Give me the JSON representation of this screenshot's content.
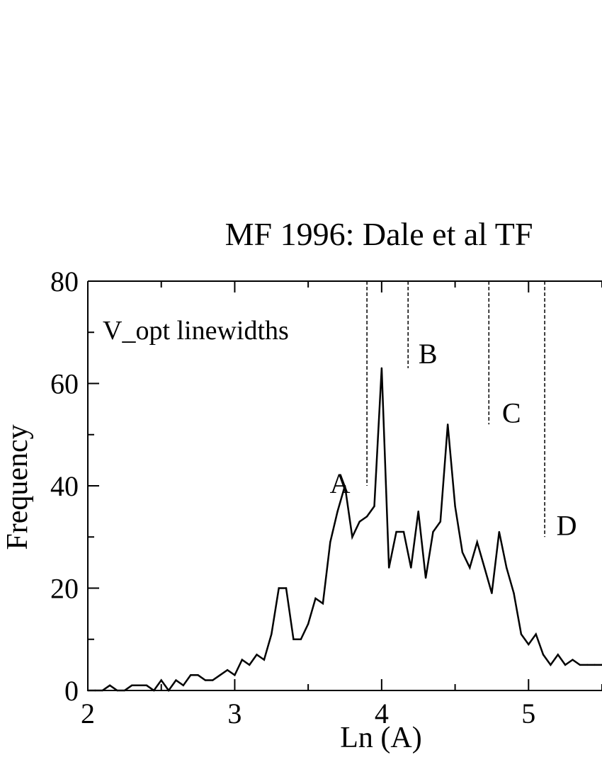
{
  "chart_data": {
    "type": "line",
    "title": "MF 1996:  Dale et al TF",
    "xlabel": "Ln (A)",
    "ylabel": "Frequency",
    "annotation_text": "V_opt linewidths",
    "xlim": [
      2,
      5.5
    ],
    "ylim": [
      0,
      80
    ],
    "x_ticks": [
      2,
      3,
      4,
      5
    ],
    "x_tick_labels": [
      "2",
      "3",
      "4",
      "5"
    ],
    "y_ticks": [
      0,
      20,
      40,
      60,
      80
    ],
    "y_tick_labels": [
      "0",
      "20",
      "40",
      "60",
      "80"
    ],
    "grid": false,
    "line_color": "#000000",
    "series": [
      {
        "x": [
          2.0,
          2.05,
          2.1,
          2.15,
          2.2,
          2.25,
          2.3,
          2.35,
          2.4,
          2.45,
          2.5,
          2.55,
          2.6,
          2.65,
          2.7,
          2.75,
          2.8,
          2.85,
          2.9,
          2.95,
          3.0,
          3.05,
          3.1,
          3.15,
          3.2,
          3.25,
          3.3,
          3.35,
          3.4,
          3.45,
          3.5,
          3.55,
          3.6,
          3.65,
          3.7,
          3.75,
          3.8,
          3.85,
          3.9,
          3.95,
          4.0,
          4.05,
          4.1,
          4.15,
          4.2,
          4.25,
          4.3,
          4.35,
          4.4,
          4.45,
          4.5,
          4.55,
          4.6,
          4.65,
          4.7,
          4.75,
          4.8,
          4.85,
          4.9,
          4.95,
          5.0,
          5.05,
          5.1,
          5.15,
          5.2,
          5.25,
          5.3,
          5.35,
          5.4,
          5.45,
          5.5
        ],
        "values": [
          0,
          0,
          0,
          1,
          0,
          0,
          1,
          1,
          1,
          0,
          2,
          0,
          2,
          1,
          3,
          3,
          2,
          2,
          3,
          4,
          3,
          6,
          5,
          7,
          6,
          11,
          20,
          20,
          10,
          10,
          13,
          18,
          17,
          29,
          35,
          40,
          30,
          33,
          34,
          36,
          63,
          24,
          31,
          31,
          24,
          35,
          22,
          31,
          33,
          52,
          36,
          27,
          24,
          29,
          24,
          19,
          31,
          24,
          19,
          11,
          9,
          11,
          7,
          5,
          7,
          5,
          6,
          5,
          5,
          5,
          5
        ]
      }
    ],
    "markers": [
      {
        "label": "A",
        "x": 3.9,
        "y": 40
      },
      {
        "label": "B",
        "x": 4.18,
        "y": 63
      },
      {
        "label": "C",
        "x": 4.73,
        "y": 52
      },
      {
        "label": "D",
        "x": 5.11,
        "y": 30
      }
    ]
  }
}
